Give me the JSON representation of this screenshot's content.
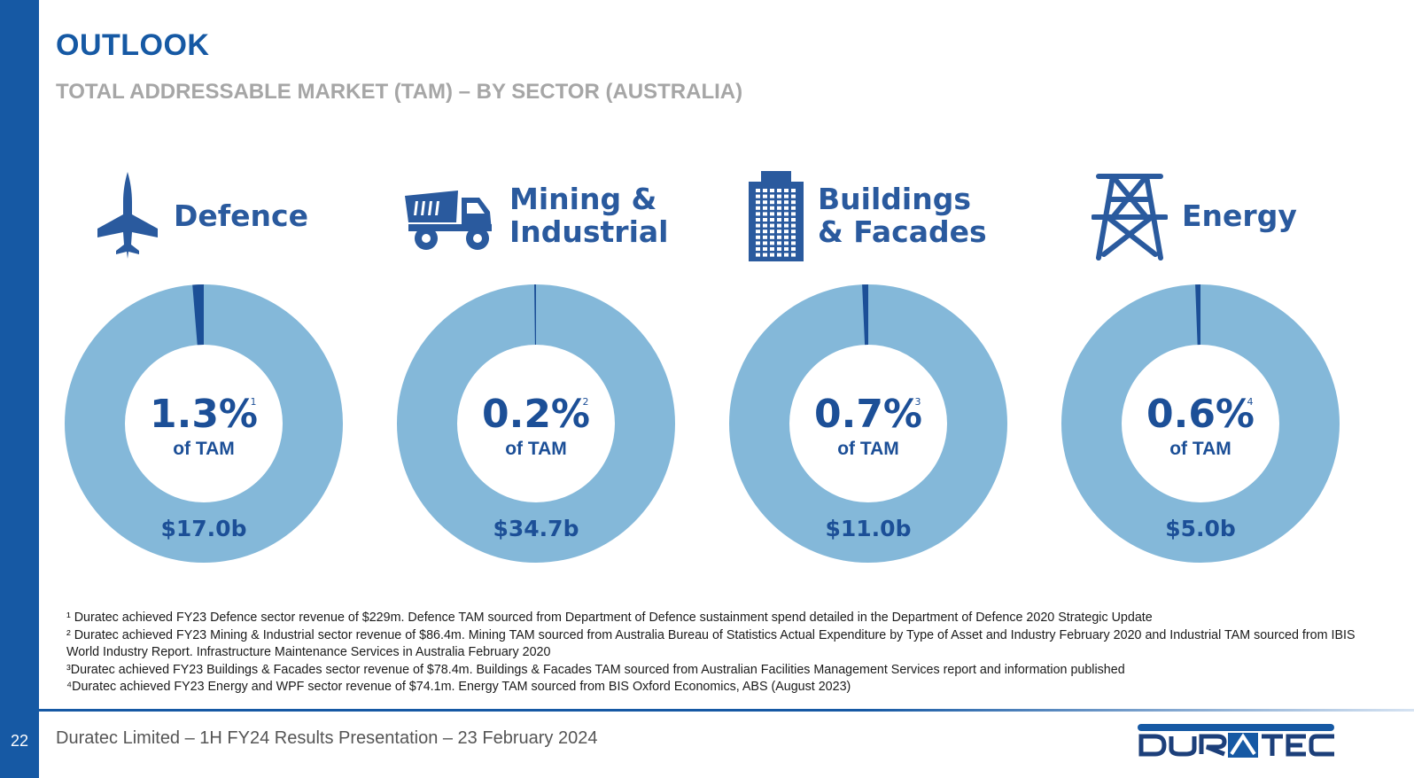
{
  "page_number": "22",
  "title": "OUTLOOK",
  "subtitle": "TOTAL ADDRESSABLE MARKET (TAM) – BY SECTOR (AUSTRALIA)",
  "sectors": [
    {
      "label_line1": "Defence",
      "label_line2": "",
      "icon": "fighter-jet-icon"
    },
    {
      "label_line1": "Mining &",
      "label_line2": "Industrial",
      "icon": "dump-truck-icon"
    },
    {
      "label_line1": "Buildings",
      "label_line2": "& Facades",
      "icon": "building-icon"
    },
    {
      "label_line1": "Energy",
      "label_line2": "",
      "icon": "transmission-tower-icon"
    }
  ],
  "colors": {
    "brand": "#1659a4",
    "ring": "#84b8d9",
    "slice": "#1c4f97",
    "text_dark": "#1c4f97"
  },
  "chart_data": [
    {
      "type": "pie",
      "sector": "Defence",
      "values": [
        1.3,
        98.7
      ],
      "center_value": "1.3%",
      "footnote_ref": "1",
      "center_label": "of TAM",
      "total_label": "$17.0b"
    },
    {
      "type": "pie",
      "sector": "Mining & Industrial",
      "values": [
        0.2,
        99.8
      ],
      "center_value": "0.2%",
      "footnote_ref": "2",
      "center_label": "of TAM",
      "total_label": "$34.7b"
    },
    {
      "type": "pie",
      "sector": "Buildings & Facades",
      "values": [
        0.7,
        99.3
      ],
      "center_value": "0.7%",
      "footnote_ref": "3",
      "center_label": "of TAM",
      "total_label": "$11.0b"
    },
    {
      "type": "pie",
      "sector": "Energy",
      "values": [
        0.6,
        99.4
      ],
      "center_value": "0.6%",
      "footnote_ref": "4",
      "center_label": "of TAM",
      "total_label": "$5.0b"
    }
  ],
  "footnotes": [
    "¹ Duratec achieved FY23 Defence sector revenue of $229m. Defence TAM sourced from Department of Defence sustainment spend detailed in the Department of Defence 2020 Strategic Update",
    "² Duratec achieved FY23 Mining & Industrial sector revenue of $86.4m. Mining TAM sourced from Australia Bureau of Statistics Actual Expenditure by Type of Asset and Industry February 2020 and Industrial TAM sourced from IBIS World Industry Report. Infrastructure Maintenance Services in Australia February 2020",
    "³Duratec achieved FY23 Buildings & Facades sector revenue of $78.4m. Buildings & Facades TAM sourced from Australian Facilities Management Services report and information published",
    "⁴Duratec achieved FY23 Energy and WPF sector revenue of $74.1m. Energy TAM sourced from BIS Oxford Economics, ABS (August 2023)"
  ],
  "footer": {
    "text": "Duratec Limited – 1H FY24 Results Presentation – 23 February 2024",
    "logo_text": "DURATEC"
  }
}
